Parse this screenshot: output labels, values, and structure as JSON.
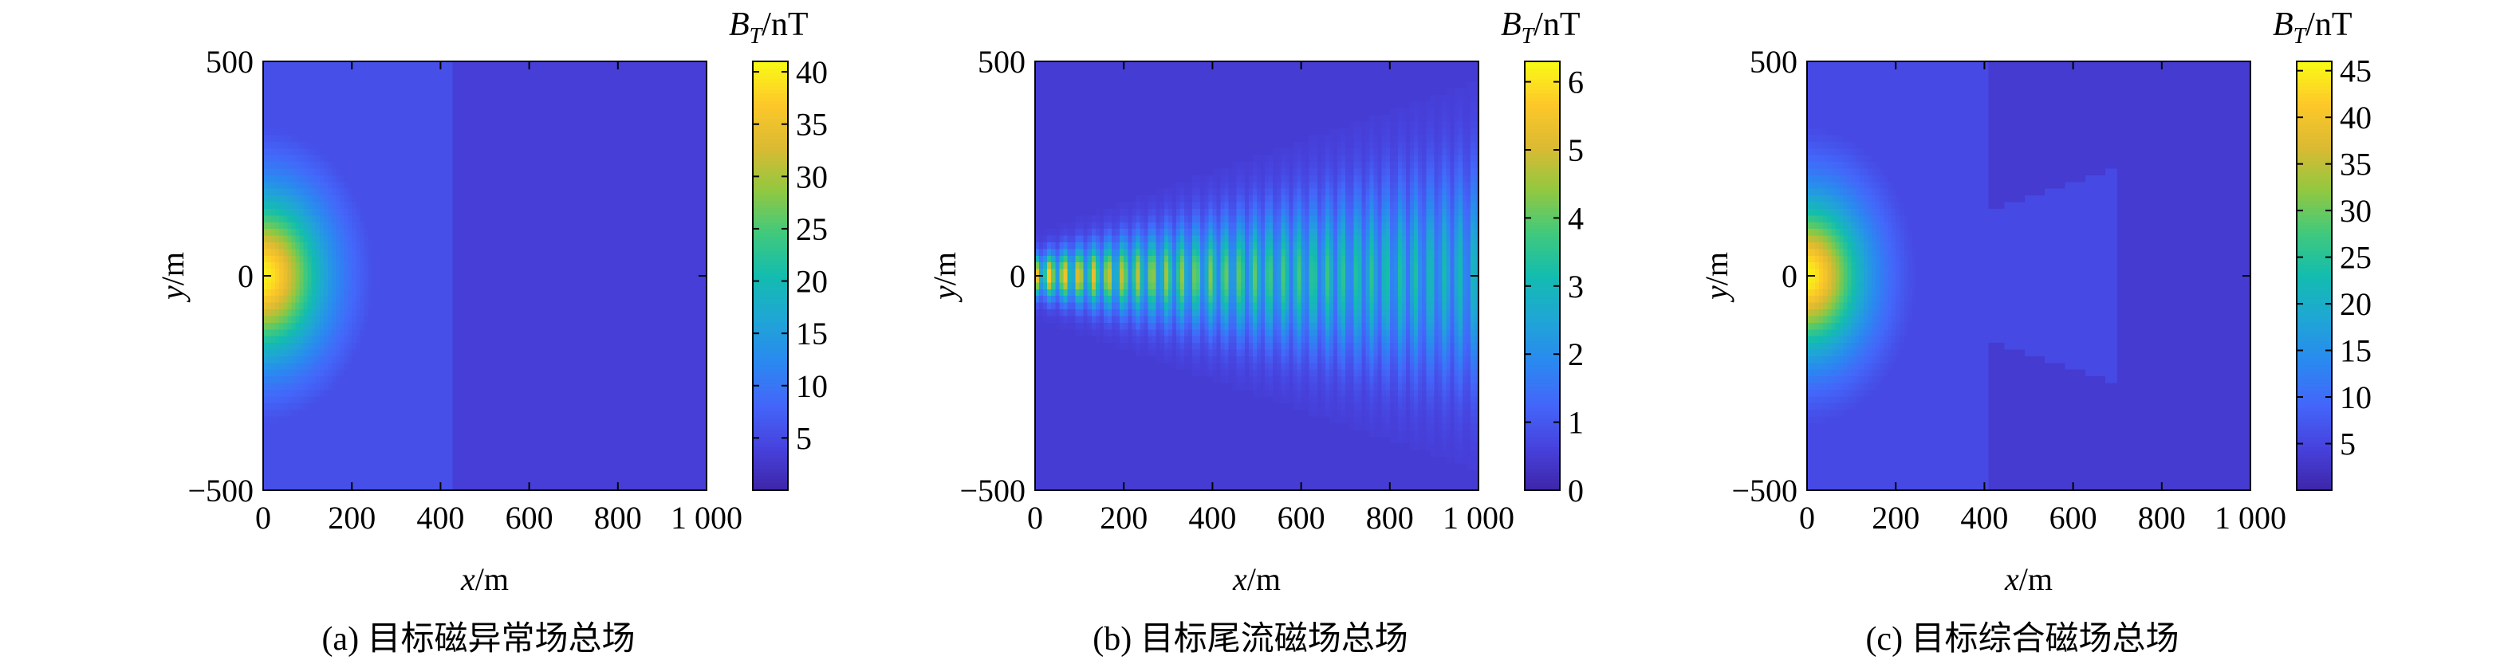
{
  "chart_data": [
    {
      "type": "heatmap",
      "caption": "(a) 目标磁异常场总场",
      "xlabel_var": "x",
      "xlabel_unit": "/m",
      "ylabel_var": "y",
      "ylabel_unit": "/m",
      "xlim": [
        0,
        1000
      ],
      "ylim": [
        -500,
        500
      ],
      "x_ticks": [
        0,
        200,
        400,
        600,
        800,
        1000
      ],
      "x_tick_labels": [
        "0",
        "200",
        "400",
        "600",
        "800",
        "1 000"
      ],
      "y_ticks": [
        -500,
        0,
        500
      ],
      "y_tick_labels": [
        "−500",
        "0",
        "500"
      ],
      "colorbar_label_var": "B",
      "colorbar_label_sub": "T",
      "colorbar_label_unit": "/nT",
      "colorbar_range": [
        0,
        41
      ],
      "colorbar_ticks": [
        5,
        10,
        15,
        20,
        25,
        30,
        35,
        40
      ],
      "colorbar_tick_labels": [
        "5",
        "10",
        "15",
        "20",
        "25",
        "30",
        "35",
        "40"
      ],
      "field": {
        "kind": "dipole",
        "peak": 40,
        "scale_x": 160,
        "scale_y": 220,
        "floor": 5.5,
        "cutoff_x": 430,
        "background": 3.5
      }
    },
    {
      "type": "heatmap",
      "caption": "(b) 目标尾流磁场总场",
      "xlabel_var": "x",
      "xlabel_unit": "/m",
      "ylabel_var": "y",
      "ylabel_unit": "/m",
      "xlim": [
        0,
        1000
      ],
      "ylim": [
        -500,
        500
      ],
      "x_ticks": [
        0,
        200,
        400,
        600,
        800,
        1000
      ],
      "x_tick_labels": [
        "0",
        "200",
        "400",
        "600",
        "800",
        "1 000"
      ],
      "y_ticks": [
        -500,
        0,
        500
      ],
      "y_tick_labels": [
        "−500",
        "0",
        "500"
      ],
      "colorbar_label_var": "B",
      "colorbar_label_sub": "T",
      "colorbar_label_unit": "/nT",
      "colorbar_range": [
        0,
        6.3
      ],
      "colorbar_ticks": [
        0,
        1,
        2,
        3,
        4,
        5,
        6
      ],
      "colorbar_tick_labels": [
        "0",
        "1",
        "2",
        "3",
        "4",
        "5",
        "6"
      ],
      "field": {
        "kind": "wake",
        "peak": 6,
        "wavelength": 33,
        "half_angle_deg": 19.5,
        "near_width": 80,
        "background": 0.5
      }
    },
    {
      "type": "heatmap",
      "caption": "(c) 目标综合磁场总场",
      "xlabel_var": "x",
      "xlabel_unit": "/m",
      "ylabel_var": "y",
      "ylabel_unit": "/m",
      "xlim": [
        0,
        1000
      ],
      "ylim": [
        -500,
        500
      ],
      "x_ticks": [
        0,
        200,
        400,
        600,
        800,
        1000
      ],
      "x_tick_labels": [
        "0",
        "200",
        "400",
        "600",
        "800",
        "1 000"
      ],
      "y_ticks": [
        -500,
        0,
        500
      ],
      "y_tick_labels": [
        "−500",
        "0",
        "500"
      ],
      "colorbar_label_var": "B",
      "colorbar_label_sub": "T",
      "colorbar_label_unit": "/nT",
      "colorbar_range": [
        0,
        46
      ],
      "colorbar_ticks": [
        5,
        10,
        15,
        20,
        25,
        30,
        35,
        40,
        45
      ],
      "colorbar_tick_labels": [
        "5",
        "10",
        "15",
        "20",
        "25",
        "30",
        "35",
        "40",
        "45"
      ],
      "field": {
        "kind": "combined",
        "peak": 45,
        "scale_x": 150,
        "scale_y": 210,
        "floor": 5.5,
        "cutoff_x": 410,
        "background": 3.5,
        "wake_extent": 700
      }
    }
  ]
}
